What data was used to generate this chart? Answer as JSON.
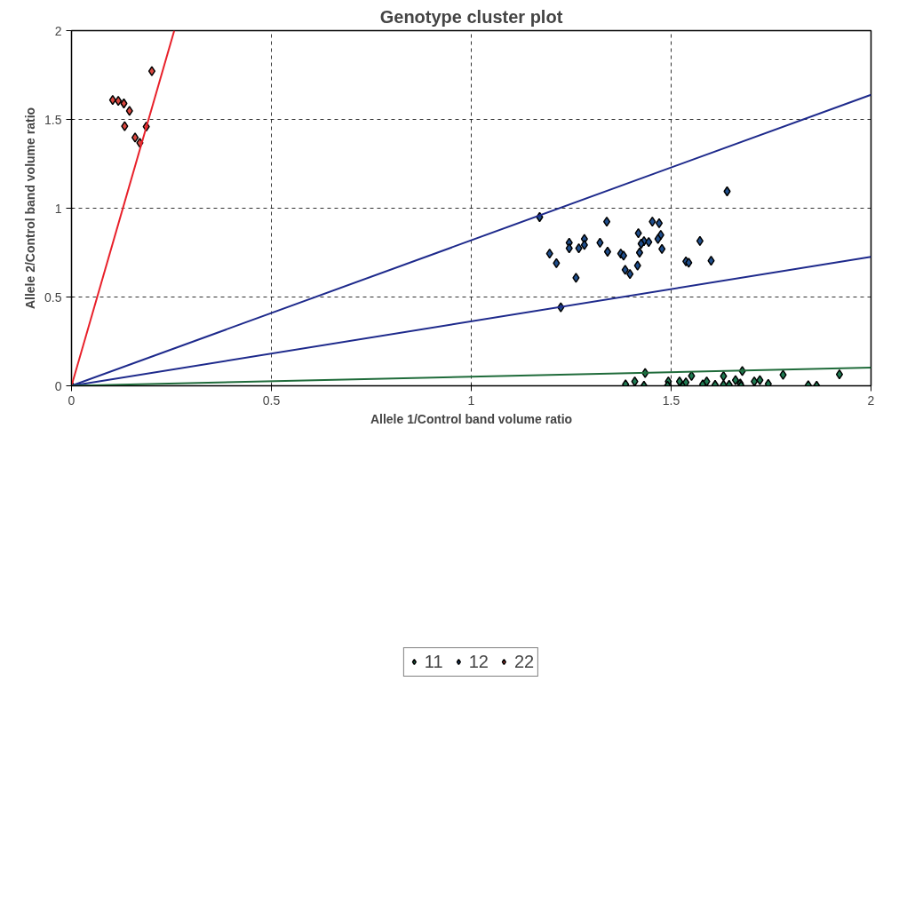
{
  "chart_data": {
    "type": "scatter",
    "title": "Genotype cluster plot",
    "xlabel": "Allele 1/Control band volume ratio",
    "ylabel": "Allele 2/Control band volume ratio",
    "xlim": [
      0,
      2
    ],
    "ylim": [
      0,
      2
    ],
    "xticks": [
      0,
      0.5,
      1,
      1.5,
      2
    ],
    "yticks": [
      0,
      0.5,
      1,
      1.5,
      2
    ],
    "grid": true,
    "legend": "bottom",
    "marker": "diamond",
    "series": [
      {
        "name": "11",
        "color": "#1f7a52",
        "x": [
          0,
          1.435,
          1.678,
          1.551,
          1.631,
          1.78,
          1.921,
          1.386,
          1.409,
          1.432,
          1.493,
          1.491,
          1.521,
          1.53,
          1.537,
          1.579,
          1.589,
          1.61,
          1.631,
          1.645,
          1.661,
          1.673,
          1.675,
          1.708,
          1.722,
          1.743,
          1.843,
          1.864
        ],
        "values": [
          0,
          0.072,
          0.083,
          0.056,
          0.054,
          0.062,
          0.064,
          0.008,
          0.024,
          0,
          0.024,
          0,
          0.024,
          0,
          0.019,
          0.008,
          0.024,
          0.005,
          0.005,
          0.005,
          0.032,
          0.013,
          0,
          0.024,
          0.032,
          0.011,
          0.003,
          0
        ]
      },
      {
        "name": "12",
        "color": "#1f4e8c",
        "x": [
          1.64,
          1.171,
          1.339,
          1.453,
          1.47,
          1.418,
          1.474,
          1.467,
          1.283,
          1.245,
          1.322,
          1.432,
          1.444,
          1.425,
          1.572,
          1.283,
          1.245,
          1.269,
          1.477,
          1.196,
          1.341,
          1.374,
          1.381,
          1.421,
          1.537,
          1.544,
          1.6,
          1.213,
          1.416,
          1.385,
          1.397,
          1.262,
          1.224
        ],
        "values": [
          1.095,
          0.95,
          0.924,
          0.924,
          0.916,
          0.859,
          0.849,
          0.827,
          0.827,
          0.806,
          0.806,
          0.814,
          0.809,
          0.8,
          0.816,
          0.793,
          0.774,
          0.774,
          0.771,
          0.744,
          0.755,
          0.744,
          0.733,
          0.75,
          0.701,
          0.693,
          0.704,
          0.691,
          0.677,
          0.653,
          0.629,
          0.608,
          0.442
        ]
      },
      {
        "name": "22",
        "color": "#d9473f",
        "x": [
          0.201,
          0.103,
          0.117,
          0.131,
          0.145,
          0.133,
          0.187,
          0.159,
          0.171
        ],
        "values": [
          1.772,
          1.609,
          1.604,
          1.59,
          1.548,
          1.462,
          1.459,
          1.398,
          1.368
        ]
      },
      {
        "type": "line",
        "color": "#e8202a",
        "marker": "none",
        "line_style": "solid",
        "x": [
          0,
          0.257
        ],
        "values": [
          0,
          2
        ]
      },
      {
        "type": "line",
        "color": "#1e2a8c",
        "marker": "none",
        "line_style": "solid",
        "x": [
          0,
          2
        ],
        "values": [
          0,
          1.639
        ]
      },
      {
        "type": "line",
        "color": "#1e2a8c",
        "marker": "none",
        "line_style": "solid",
        "x": [
          0,
          2
        ],
        "values": [
          0,
          0.726
        ]
      },
      {
        "type": "line",
        "color": "#1f6b3a",
        "marker": "none",
        "line_style": "solid",
        "x": [
          0,
          2
        ],
        "values": [
          0,
          0.102
        ]
      }
    ]
  }
}
